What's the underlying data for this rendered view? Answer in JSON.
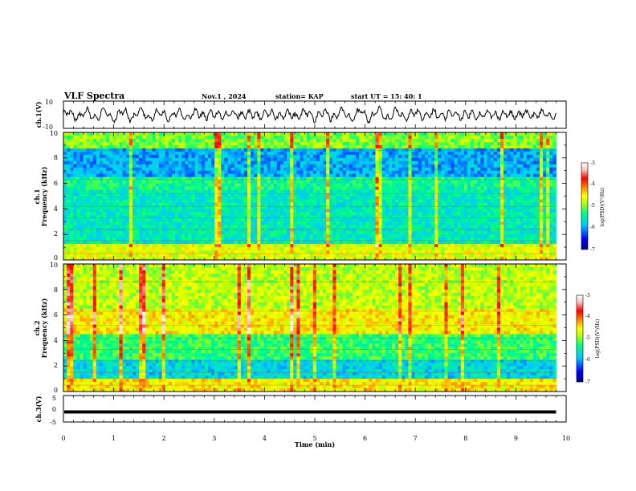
{
  "header": {
    "title": "VLF Spectra",
    "date": "Nov.1 , 2024",
    "station": "station= KAP",
    "start": "start UT = 15: 40: 1"
  },
  "panels": {
    "ch1_waveform": {
      "ylabel": "ch.1(V)",
      "yticks": [
        "10",
        "-10"
      ]
    },
    "ch1_spectrogram": {
      "ylabel_line1": "ch.1",
      "ylabel_line2": "Frequency (kHz)",
      "yticks": [
        "0",
        "2",
        "4",
        "6",
        "8",
        "10"
      ]
    },
    "ch2_spectrogram": {
      "ylabel_line1": "ch.2",
      "ylabel_line2": "Frequency (kHz)",
      "yticks": [
        "0",
        "2",
        "4",
        "6",
        "8",
        "10"
      ]
    },
    "ch3_waveform": {
      "ylabel": "ch.3(V)",
      "yticks": [
        "5",
        "0",
        "-5"
      ]
    }
  },
  "colorbar": {
    "ticks": [
      "-3",
      "-4",
      "-5",
      "-6",
      "-7"
    ],
    "label": "log(PSD)(V²/Hz)",
    "colors": [
      "#000080",
      "#0000ff",
      "#00c8ff",
      "#00ff80",
      "#c8ff00",
      "#ffff00",
      "#ff8000",
      "#ff0000",
      "#ffc0c0",
      "#ffffff"
    ]
  },
  "xaxis": {
    "label": "Time (min)",
    "ticks": [
      "0",
      "1",
      "2",
      "3",
      "4",
      "5",
      "6",
      "7",
      "8",
      "9",
      "10"
    ]
  },
  "chart_data": [
    {
      "type": "line",
      "name": "ch.1 waveform",
      "ylabel": "ch.1(V)",
      "xlim": [
        0,
        10
      ],
      "ylim": [
        -10,
        10
      ],
      "xlabel": "Time (min)"
    },
    {
      "type": "heatmap",
      "ylabel": "ch.1 Frequency (kHz)",
      "xlim": [
        0,
        10
      ],
      "ylim": [
        0,
        10
      ],
      "zlabel": "log(PSD)(V²/Hz)",
      "zlim": [
        -7,
        -3
      ],
      "data_extent_min": 9.8
    },
    {
      "type": "heatmap",
      "ylabel": "ch.2 Frequency (kHz)",
      "xlim": [
        0,
        10
      ],
      "ylim": [
        0,
        10
      ],
      "zlabel": "log(PSD)(V²/Hz)",
      "zlim": [
        -7,
        -3
      ],
      "data_extent_min": 9.8
    },
    {
      "type": "line",
      "name": "ch.3 waveform",
      "ylabel": "ch.3(V)",
      "xlim": [
        0,
        10
      ],
      "ylim": [
        -5,
        5
      ],
      "approx_level": -1.2
    }
  ]
}
